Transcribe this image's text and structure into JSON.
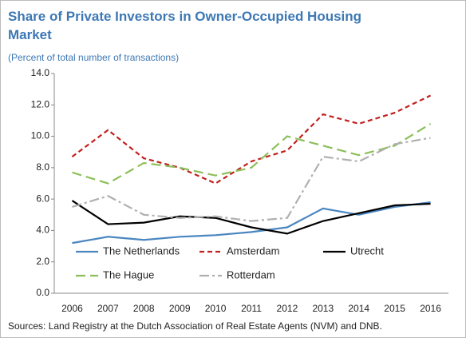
{
  "chart_data": {
    "type": "line",
    "title": "Share of Private Investors in Owner-Occupied Housing Market",
    "subtitle": "(Percent of total number of transactions)",
    "source": "Sources: Land Registry at the Dutch Association of Real Estate Agents (NVM) and DNB.",
    "categories": [
      "2006",
      "2007",
      "2008",
      "2009",
      "2010",
      "2011",
      "2012",
      "2013",
      "2014",
      "2015",
      "2016"
    ],
    "series": [
      {
        "name": "The Netherlands",
        "color": "#4a86c0",
        "style": "solid",
        "values": [
          3.2,
          3.6,
          3.4,
          3.6,
          3.7,
          3.9,
          4.2,
          5.4,
          5.0,
          5.5,
          5.8
        ]
      },
      {
        "name": "Amsterdam",
        "color": "#c0201e",
        "style": "dashed",
        "values": [
          8.7,
          10.4,
          8.6,
          8.0,
          7.0,
          8.4,
          9.1,
          11.4,
          10.8,
          11.5,
          12.6
        ]
      },
      {
        "name": "Utrecht",
        "color": "#000000",
        "style": "solid",
        "values": [
          5.9,
          4.4,
          4.5,
          4.9,
          4.8,
          4.2,
          3.8,
          4.6,
          5.1,
          5.6,
          5.7
        ]
      },
      {
        "name": "The Hague",
        "color": "#8cbf5a",
        "style": "longdash",
        "values": [
          7.7,
          7.0,
          8.3,
          8.0,
          7.5,
          8.0,
          10.0,
          9.4,
          8.8,
          9.4,
          10.8
        ]
      },
      {
        "name": "Rotterdam",
        "color": "#b0b0b0",
        "style": "dashdot",
        "values": [
          5.5,
          6.2,
          5.0,
          4.8,
          4.9,
          4.6,
          4.8,
          8.7,
          8.4,
          9.5,
          9.9
        ]
      }
    ],
    "ylim": [
      0,
      14
    ],
    "yticks": [
      {
        "value": 0,
        "label": "0.0"
      },
      {
        "value": 2,
        "label": "2.0"
      },
      {
        "value": 4,
        "label": "4.0"
      },
      {
        "value": 6,
        "label": "6.0"
      },
      {
        "value": 8,
        "label": "8.0"
      },
      {
        "value": 10,
        "label": "10.0"
      },
      {
        "value": 12,
        "label": "12.0"
      },
      {
        "value": 14,
        "label": "14.0"
      }
    ],
    "legend": "bottom-left"
  }
}
